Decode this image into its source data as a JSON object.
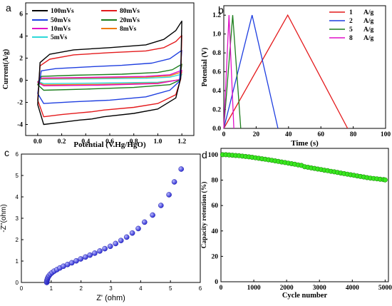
{
  "chart_data": [
    {
      "panel": "a",
      "type": "line",
      "xlabel": "Potential (V.Hg/HgO)",
      "ylabel": "Current(A/g)",
      "xlim": [
        -0.1,
        1.3
      ],
      "ylim": [
        -5,
        7
      ],
      "xticks": [
        "0.0",
        "0.2",
        "0.4",
        "0.6",
        "0.8",
        "1.0",
        "1.2"
      ],
      "yticks": [
        "-4",
        "-2",
        "0",
        "2",
        "4",
        "6"
      ],
      "legend": [
        "100mVs",
        "80mVs",
        "50mVs",
        "20mVs",
        "10mVs",
        "8mVs",
        "5mVs"
      ],
      "legend_placement": "top-left",
      "series": [
        {
          "name": "100mVs",
          "color": "#000000",
          "upper": [
            [
              0.0,
              -2.2
            ],
            [
              0.02,
              1.6
            ],
            [
              0.1,
              2.35
            ],
            [
              0.3,
              2.75
            ],
            [
              0.6,
              2.95
            ],
            [
              0.9,
              3.2
            ],
            [
              1.05,
              3.7
            ],
            [
              1.15,
              4.5
            ],
            [
              1.2,
              5.35
            ]
          ],
          "lower": [
            [
              1.2,
              5.35
            ],
            [
              1.19,
              0.2
            ],
            [
              1.15,
              -1.6
            ],
            [
              1.0,
              -2.6
            ],
            [
              0.8,
              -3.0
            ],
            [
              0.55,
              -3.3
            ],
            [
              0.45,
              -3.5
            ],
            [
              0.35,
              -3.6
            ],
            [
              0.2,
              -3.8
            ],
            [
              0.05,
              -4.0
            ],
            [
              0.0,
              -2.2
            ]
          ]
        },
        {
          "name": "80mVs",
          "color": "#e41a1c",
          "upper": [
            [
              0.0,
              -1.8
            ],
            [
              0.02,
              1.3
            ],
            [
              0.1,
              1.9
            ],
            [
              0.3,
              2.3
            ],
            [
              0.6,
              2.5
            ],
            [
              0.9,
              2.65
            ],
            [
              1.05,
              2.95
            ],
            [
              1.15,
              3.5
            ],
            [
              1.2,
              4.05
            ]
          ],
          "lower": [
            [
              1.2,
              4.05
            ],
            [
              1.19,
              0.1
            ],
            [
              1.15,
              -1.3
            ],
            [
              1.0,
              -2.1
            ],
            [
              0.8,
              -2.45
            ],
            [
              0.55,
              -2.7
            ],
            [
              0.45,
              -2.85
            ],
            [
              0.35,
              -2.95
            ],
            [
              0.2,
              -3.1
            ],
            [
              0.05,
              -3.3
            ],
            [
              0.0,
              -1.8
            ]
          ]
        },
        {
          "name": "50mVs",
          "color": "#1f3fe0",
          "upper": [
            [
              0.0,
              -1.2
            ],
            [
              0.03,
              0.85
            ],
            [
              0.15,
              1.05
            ],
            [
              0.4,
              1.2
            ],
            [
              0.7,
              1.35
            ],
            [
              0.95,
              1.55
            ],
            [
              1.1,
              1.95
            ],
            [
              1.2,
              2.7
            ]
          ],
          "lower": [
            [
              1.2,
              2.7
            ],
            [
              1.18,
              -0.1
            ],
            [
              1.1,
              -0.9
            ],
            [
              0.9,
              -1.5
            ],
            [
              0.6,
              -1.8
            ],
            [
              0.3,
              -1.95
            ],
            [
              0.05,
              -2.1
            ],
            [
              0.0,
              -1.2
            ]
          ]
        },
        {
          "name": "20mVs",
          "color": "#1b7d1b",
          "upper": [
            [
              0.0,
              -0.4
            ],
            [
              0.03,
              0.35
            ],
            [
              0.3,
              0.45
            ],
            [
              0.7,
              0.55
            ],
            [
              1.0,
              0.7
            ],
            [
              1.12,
              0.95
            ],
            [
              1.2,
              1.45
            ]
          ],
          "lower": [
            [
              1.2,
              1.45
            ],
            [
              1.18,
              0.0
            ],
            [
              1.1,
              -0.4
            ],
            [
              0.8,
              -0.65
            ],
            [
              0.4,
              -0.8
            ],
            [
              0.05,
              -0.9
            ],
            [
              0.0,
              -0.4
            ]
          ]
        },
        {
          "name": "10mVs",
          "color": "#e010c8",
          "upper": [
            [
              0.0,
              -0.2
            ],
            [
              0.03,
              0.2
            ],
            [
              0.4,
              0.25
            ],
            [
              0.9,
              0.35
            ],
            [
              1.1,
              0.5
            ],
            [
              1.2,
              0.9
            ]
          ],
          "lower": [
            [
              1.2,
              0.9
            ],
            [
              1.18,
              0.05
            ],
            [
              1.0,
              -0.3
            ],
            [
              0.5,
              -0.45
            ],
            [
              0.05,
              -0.5
            ],
            [
              0.0,
              -0.2
            ]
          ]
        },
        {
          "name": "8mVs",
          "color": "#f07a10",
          "upper": [
            [
              0.0,
              -0.15
            ],
            [
              0.03,
              0.15
            ],
            [
              0.4,
              0.2
            ],
            [
              0.9,
              0.28
            ],
            [
              1.1,
              0.4
            ],
            [
              1.2,
              0.75
            ]
          ],
          "lower": [
            [
              1.2,
              0.75
            ],
            [
              1.18,
              0.05
            ],
            [
              1.0,
              -0.25
            ],
            [
              0.5,
              -0.38
            ],
            [
              0.05,
              -0.42
            ],
            [
              0.0,
              -0.15
            ]
          ]
        },
        {
          "name": "5mVs",
          "color": "#2ed8d8",
          "upper": [
            [
              0.0,
              -0.1
            ],
            [
              0.03,
              0.1
            ],
            [
              0.4,
              0.12
            ],
            [
              0.9,
              0.18
            ],
            [
              1.1,
              0.28
            ],
            [
              1.2,
              0.55
            ]
          ],
          "lower": [
            [
              1.2,
              0.55
            ],
            [
              1.18,
              0.02
            ],
            [
              1.0,
              -0.18
            ],
            [
              0.5,
              -0.26
            ],
            [
              0.05,
              -0.3
            ],
            [
              0.0,
              -0.1
            ]
          ]
        }
      ]
    },
    {
      "panel": "b",
      "type": "line",
      "xlabel": "Time (s)",
      "ylabel": "Potential (V)",
      "xlim": [
        0,
        100
      ],
      "ylim": [
        0,
        1.3
      ],
      "xticks": [
        "0",
        "20",
        "40",
        "60",
        "80",
        "100"
      ],
      "yticks": [
        "0.0",
        "0.2",
        "0.4",
        "0.6",
        "0.8",
        "1.0",
        "1.2"
      ],
      "legend_placement": "top-right",
      "series": [
        {
          "name": "1",
          "unit": "A/g",
          "color": "#e41a1c",
          "points": [
            [
              0,
              0
            ],
            [
              39.5,
              1.2
            ],
            [
              76.5,
              0
            ]
          ]
        },
        {
          "name": "2",
          "unit": "A/g",
          "color": "#1f3fe0",
          "points": [
            [
              0,
              0
            ],
            [
              17.5,
              1.2
            ],
            [
              33.5,
              0
            ]
          ]
        },
        {
          "name": "5",
          "unit": "A/g",
          "color": "#1b7d1b",
          "points": [
            [
              0,
              0
            ],
            [
              5.5,
              1.2
            ],
            [
              10.5,
              0
            ]
          ]
        },
        {
          "name": "8",
          "unit": "A/g",
          "color": "#e010c8",
          "points": [
            [
              0,
              0
            ],
            [
              3.2,
              1.2
            ],
            [
              6.2,
              0
            ]
          ]
        }
      ]
    },
    {
      "panel": "c",
      "type": "scatter",
      "xlabel": "Z' (ohm)",
      "ylabel": "-Z''(ohm)",
      "xlim": [
        0,
        6
      ],
      "ylim": [
        0,
        6
      ],
      "xticks": [
        "0",
        "1",
        "2",
        "3",
        "4",
        "5",
        "6"
      ],
      "yticks": [
        "0",
        "1",
        "2",
        "3",
        "4",
        "5",
        "6"
      ],
      "color": "#2a2ad0",
      "points": [
        [
          0.85,
          0.0
        ],
        [
          0.85,
          0.05
        ],
        [
          0.86,
          0.1
        ],
        [
          0.87,
          0.15
        ],
        [
          0.88,
          0.2
        ],
        [
          0.9,
          0.26
        ],
        [
          0.93,
          0.32
        ],
        [
          0.97,
          0.39
        ],
        [
          1.03,
          0.46
        ],
        [
          1.1,
          0.53
        ],
        [
          1.19,
          0.6
        ],
        [
          1.29,
          0.68
        ],
        [
          1.41,
          0.76
        ],
        [
          1.55,
          0.84
        ],
        [
          1.69,
          0.92
        ],
        [
          1.84,
          1.01
        ],
        [
          1.99,
          1.1
        ],
        [
          2.15,
          1.19
        ],
        [
          2.3,
          1.28
        ],
        [
          2.46,
          1.37
        ],
        [
          2.63,
          1.47
        ],
        [
          2.8,
          1.58
        ],
        [
          2.98,
          1.69
        ],
        [
          3.16,
          1.82
        ],
        [
          3.34,
          1.96
        ],
        [
          3.53,
          2.12
        ],
        [
          3.72,
          2.31
        ],
        [
          3.92,
          2.52
        ],
        [
          4.13,
          2.82
        ],
        [
          4.4,
          3.15
        ],
        [
          4.68,
          3.6
        ],
        [
          4.95,
          4.1
        ],
        [
          5.13,
          4.7
        ],
        [
          5.36,
          5.3
        ]
      ]
    },
    {
      "panel": "d",
      "type": "scatter",
      "xlabel": "Cycle number",
      "ylabel": "Capacity retention (%)",
      "xlim": [
        0,
        5100
      ],
      "ylim": [
        0,
        105
      ],
      "xticks": [
        "0",
        "1000",
        "2000",
        "3000",
        "4000",
        "5000"
      ],
      "yticks": [
        "0",
        "20",
        "40",
        "60",
        "80",
        "100"
      ],
      "color": "#39e81f",
      "points": [
        [
          50,
          100
        ],
        [
          150,
          100
        ],
        [
          250,
          99.8
        ],
        [
          350,
          99.6
        ],
        [
          450,
          99.4
        ],
        [
          550,
          99.2
        ],
        [
          650,
          98.9
        ],
        [
          750,
          98.6
        ],
        [
          850,
          98.3
        ],
        [
          950,
          98.0
        ],
        [
          1050,
          97.6
        ],
        [
          1150,
          97.2
        ],
        [
          1250,
          96.8
        ],
        [
          1350,
          96.4
        ],
        [
          1450,
          96.0
        ],
        [
          1550,
          95.6
        ],
        [
          1650,
          95.2
        ],
        [
          1750,
          94.7
        ],
        [
          1850,
          94.3
        ],
        [
          1950,
          93.8
        ],
        [
          2050,
          93.4
        ],
        [
          2150,
          92.9
        ],
        [
          2250,
          92.5
        ],
        [
          2350,
          92.0
        ],
        [
          2450,
          91.6
        ],
        [
          2550,
          90.5
        ],
        [
          2650,
          90.1
        ],
        [
          2750,
          89.6
        ],
        [
          2850,
          89.2
        ],
        [
          2950,
          88.7
        ],
        [
          3050,
          88.3
        ],
        [
          3150,
          87.8
        ],
        [
          3250,
          87.4
        ],
        [
          3350,
          86.9
        ],
        [
          3450,
          86.5
        ],
        [
          3550,
          86.0
        ],
        [
          3650,
          85.6
        ],
        [
          3750,
          85.1
        ],
        [
          3850,
          84.7
        ],
        [
          3950,
          84.2
        ],
        [
          4050,
          83.8
        ],
        [
          4150,
          83.3
        ],
        [
          4250,
          82.9
        ],
        [
          4350,
          82.5
        ],
        [
          4450,
          82.0
        ],
        [
          4550,
          81.6
        ],
        [
          4650,
          81.3
        ],
        [
          4750,
          81.0
        ],
        [
          4850,
          80.7
        ],
        [
          4950,
          80.4
        ],
        [
          5000,
          80.2
        ]
      ]
    }
  ],
  "panel_labels": {
    "a": "a",
    "b": "b",
    "c": "c",
    "d": "d"
  }
}
